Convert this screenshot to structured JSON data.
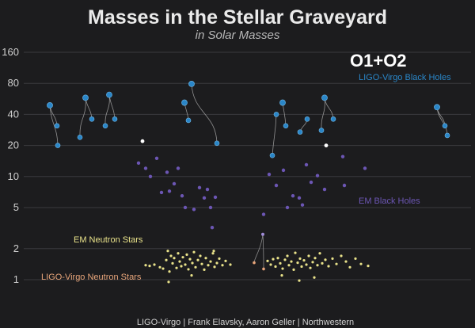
{
  "chart_data": {
    "type": "scatter",
    "title": "Masses in the Stellar Graveyard",
    "subtitle": "in Solar Masses",
    "run_label": "O1+O2",
    "credit": "LIGO-Virgo | Frank Elavsky, Aaron Geller | Northwestern",
    "y_scale": "log",
    "y_ticks": [
      1,
      2,
      5,
      10,
      20,
      40,
      80,
      160
    ],
    "grid": true,
    "colors": {
      "ligo_bh": "#2a86c8",
      "em_bh": "#6c56b4",
      "em_ns": "#e9e28a",
      "ligo_ns": "#e8a57a",
      "merger_line": "#b8b8b8",
      "gridline": "#3a3a3e",
      "remnant_white": "#ffffff"
    },
    "legend_labels": {
      "ligo_bh": "LIGO-Virgo Black Holes",
      "em_bh": "EM Black Holes",
      "em_ns": "EM Neutron Stars",
      "ligo_ns": "LIGO-Virgo Neutron Stars"
    },
    "ligo_bh_mergers": [
      {
        "primary": 31,
        "secondary": 20,
        "remnant": 49,
        "x_remnant": 0.06,
        "x_primary": 0.07,
        "x_secondary": 0.073
      },
      {
        "primary": 23,
        "secondary": 14,
        "remnant": 36,
        "x_remnant": 0.182,
        "x_primary": 0.17,
        "x_secondary": 0.207
      },
      {
        "primary": 30,
        "secondary": 8,
        "remnant": 58,
        "x_remnant": 0.22,
        "x_primary": 0.205,
        "x_secondary": 0.275
      },
      {
        "primary": 35,
        "secondary": 24,
        "remnant": 62,
        "x_remnant": 0.07,
        "x_primary": 0.062,
        "x_secondary": 0.085
      },
      {
        "primary": 34,
        "secondary": 17,
        "remnant": 52,
        "x_remnant": 0.236,
        "x_primary": 0.235,
        "x_secondary": 0.25
      },
      {
        "primary": 37,
        "secondary": 23,
        "remnant": 79,
        "x_remnant": 0.239,
        "x_primary": 0.243,
        "x_secondary": 0.235
      },
      {
        "primary": 26,
        "secondary": 11,
        "remnant": 63,
        "x_remnant": 0.41,
        "x_primary": 0.407,
        "x_secondary": 0.41
      },
      {
        "primary": 31,
        "secondary": 17,
        "remnant": 59,
        "x_remnant": 0.356,
        "x_primary": 0.357,
        "x_secondary": 0.343
      },
      {
        "primary": 39,
        "secondary": 8,
        "remnant": 47,
        "x_remnant": 0.552,
        "x_primary": 0.562,
        "x_secondary": 0.565
      }
    ],
    "ligo_bh_points": [
      {
        "x": 63,
        "m": 49
      },
      {
        "x": 72,
        "m": 31
      },
      {
        "x": 73,
        "m": 20
      },
      {
        "x": 108,
        "m": 58
      },
      {
        "x": 116,
        "m": 36
      },
      {
        "x": 101,
        "m": 24
      },
      {
        "x": 138,
        "m": 62
      },
      {
        "x": 145,
        "m": 36
      },
      {
        "x": 133,
        "m": 31
      },
      {
        "x": 233,
        "m": 52
      },
      {
        "x": 238,
        "m": 35
      },
      {
        "x": 242,
        "m": 79
      },
      {
        "x": 274,
        "m": 21
      },
      {
        "x": 344,
        "m": 16
      },
      {
        "x": 349,
        "m": 40
      },
      {
        "x": 357,
        "m": 52
      },
      {
        "x": 361,
        "m": 31
      },
      {
        "x": 379,
        "m": 27
      },
      {
        "x": 388,
        "m": 36
      },
      {
        "x": 406,
        "m": 28
      },
      {
        "x": 410,
        "m": 58
      },
      {
        "x": 421,
        "m": 36
      },
      {
        "x": 552,
        "m": 47
      },
      {
        "x": 562,
        "m": 31
      },
      {
        "x": 565,
        "m": 25
      }
    ],
    "em_bh_points": [
      {
        "x": 175,
        "m": 13.5
      },
      {
        "x": 184,
        "m": 12
      },
      {
        "x": 190,
        "m": 10
      },
      {
        "x": 198,
        "m": 15
      },
      {
        "x": 204,
        "m": 7
      },
      {
        "x": 211,
        "m": 11
      },
      {
        "x": 214,
        "m": 7.2
      },
      {
        "x": 220,
        "m": 8.5
      },
      {
        "x": 225,
        "m": 12
      },
      {
        "x": 230,
        "m": 6.5
      },
      {
        "x": 234,
        "m": 5
      },
      {
        "x": 245,
        "m": 4.8
      },
      {
        "x": 252,
        "m": 7.8
      },
      {
        "x": 258,
        "m": 6.2
      },
      {
        "x": 262,
        "m": 7.5
      },
      {
        "x": 266,
        "m": 5
      },
      {
        "x": 272,
        "m": 6.3
      },
      {
        "x": 268,
        "m": 3.2
      },
      {
        "x": 333,
        "m": 4.3
      },
      {
        "x": 340,
        "m": 10.5
      },
      {
        "x": 349,
        "m": 8.2
      },
      {
        "x": 358,
        "m": 11.5
      },
      {
        "x": 363,
        "m": 5
      },
      {
        "x": 370,
        "m": 6.5
      },
      {
        "x": 378,
        "m": 6.2
      },
      {
        "x": 382,
        "m": 5.3
      },
      {
        "x": 387,
        "m": 13
      },
      {
        "x": 393,
        "m": 8.8
      },
      {
        "x": 401,
        "m": 10.2
      },
      {
        "x": 410,
        "m": 7.5
      },
      {
        "x": 435,
        "m": 8.2
      },
      {
        "x": 433,
        "m": 15.6
      },
      {
        "x": 461,
        "m": 12
      }
    ],
    "em_ns_points": [
      {
        "x": 184,
        "m": 1.38
      },
      {
        "x": 189,
        "m": 1.36
      },
      {
        "x": 195,
        "m": 1.4
      },
      {
        "x": 202,
        "m": 1.32
      },
      {
        "x": 206,
        "m": 1.28
      },
      {
        "x": 210,
        "m": 1.55
      },
      {
        "x": 212,
        "m": 1.9
      },
      {
        "x": 214,
        "m": 1.2
      },
      {
        "x": 216,
        "m": 1.7
      },
      {
        "x": 218,
        "m": 1.44
      },
      {
        "x": 220,
        "m": 1.62
      },
      {
        "x": 223,
        "m": 1.3
      },
      {
        "x": 225,
        "m": 1.8
      },
      {
        "x": 227,
        "m": 1.5
      },
      {
        "x": 229,
        "m": 1.35
      },
      {
        "x": 231,
        "m": 1.65
      },
      {
        "x": 234,
        "m": 1.4
      },
      {
        "x": 236,
        "m": 1.75
      },
      {
        "x": 238,
        "m": 1.26
      },
      {
        "x": 240,
        "m": 1.58
      },
      {
        "x": 243,
        "m": 1.45
      },
      {
        "x": 245,
        "m": 1.85
      },
      {
        "x": 247,
        "m": 1.32
      },
      {
        "x": 250,
        "m": 1.55
      },
      {
        "x": 253,
        "m": 1.7
      },
      {
        "x": 255,
        "m": 1.42
      },
      {
        "x": 258,
        "m": 1.25
      },
      {
        "x": 260,
        "m": 1.62
      },
      {
        "x": 263,
        "m": 1.38
      },
      {
        "x": 266,
        "m": 1.5
      },
      {
        "x": 269,
        "m": 1.8
      },
      {
        "x": 271,
        "m": 1.33
      },
      {
        "x": 274,
        "m": 1.45
      },
      {
        "x": 277,
        "m": 1.6
      },
      {
        "x": 281,
        "m": 1.38
      },
      {
        "x": 285,
        "m": 1.52
      },
      {
        "x": 291,
        "m": 1.4
      },
      {
        "x": 213,
        "m": 0.95
      },
      {
        "x": 242,
        "m": 1.1
      },
      {
        "x": 270,
        "m": 1.9
      },
      {
        "x": 338,
        "m": 1.52
      },
      {
        "x": 342,
        "m": 1.4
      },
      {
        "x": 345,
        "m": 1.58
      },
      {
        "x": 348,
        "m": 1.34
      },
      {
        "x": 351,
        "m": 1.62
      },
      {
        "x": 354,
        "m": 1.44
      },
      {
        "x": 357,
        "m": 1.28
      },
      {
        "x": 360,
        "m": 1.56
      },
      {
        "x": 363,
        "m": 1.7
      },
      {
        "x": 365,
        "m": 1.38
      },
      {
        "x": 368,
        "m": 1.5
      },
      {
        "x": 371,
        "m": 1.25
      },
      {
        "x": 373,
        "m": 1.82
      },
      {
        "x": 376,
        "m": 1.46
      },
      {
        "x": 379,
        "m": 1.6
      },
      {
        "x": 381,
        "m": 1.34
      },
      {
        "x": 384,
        "m": 1.54
      },
      {
        "x": 387,
        "m": 1.4
      },
      {
        "x": 390,
        "m": 1.7
      },
      {
        "x": 392,
        "m": 1.3
      },
      {
        "x": 395,
        "m": 1.48
      },
      {
        "x": 398,
        "m": 1.62
      },
      {
        "x": 401,
        "m": 1.38
      },
      {
        "x": 404,
        "m": 1.8
      },
      {
        "x": 407,
        "m": 1.44
      },
      {
        "x": 411,
        "m": 1.56
      },
      {
        "x": 415,
        "m": 1.35
      },
      {
        "x": 420,
        "m": 1.6
      },
      {
        "x": 425,
        "m": 1.42
      },
      {
        "x": 431,
        "m": 1.7
      },
      {
        "x": 437,
        "m": 1.5
      },
      {
        "x": 442,
        "m": 1.32
      },
      {
        "x": 449,
        "m": 1.6
      },
      {
        "x": 456,
        "m": 1.42
      },
      {
        "x": 465,
        "m": 1.36
      },
      {
        "x": 378,
        "m": 0.98
      },
      {
        "x": 356,
        "m": 1.1
      },
      {
        "x": 397,
        "m": 1.05
      }
    ],
    "ligo_ns_merger": {
      "x_left": 321,
      "x_right": 333,
      "remnant": 2.75,
      "m1": 1.46,
      "m2": 1.27
    },
    "remnant_white_points": [
      {
        "x": 180,
        "m": 22
      },
      {
        "x": 412,
        "m": 20
      }
    ],
    "ns_merger_remnant": {
      "x": 332,
      "m": 2.75
    }
  }
}
